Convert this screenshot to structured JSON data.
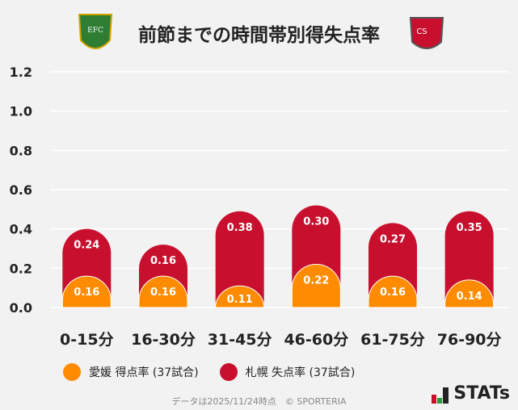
{
  "title": "前節までの時間帯別得失点率",
  "logos": {
    "left": "EFC",
    "right": "CS"
  },
  "chart_data": {
    "type": "bar",
    "stacked": true,
    "categories": [
      "0-15分",
      "16-30分",
      "31-45分",
      "46-60分",
      "61-75分",
      "76-90分"
    ],
    "series": [
      {
        "name": "愛媛 得点率 (37試合)",
        "color": "#ff8c00",
        "values": [
          0.16,
          0.16,
          0.11,
          0.22,
          0.16,
          0.14
        ]
      },
      {
        "name": "札幌 失点率 (37試合)",
        "color": "#c8102e",
        "values": [
          0.24,
          0.16,
          0.38,
          0.3,
          0.27,
          0.35
        ]
      }
    ],
    "ylim": [
      0,
      1.2
    ],
    "yticks": [
      "0.0",
      "0.2",
      "0.4",
      "0.6",
      "0.8",
      "1.0",
      "1.2"
    ],
    "grid": true,
    "legend": "bottom"
  },
  "footer": "データは2025/11/24時点　© SPORTERIA",
  "brand": "STATs"
}
